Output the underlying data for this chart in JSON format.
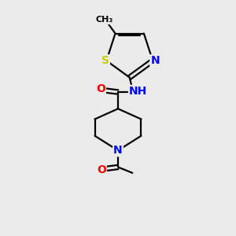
{
  "background_color": "#ebebeb",
  "bond_color": "#000000",
  "atom_colors": {
    "N": "#0000ff",
    "O": "#ff0000",
    "S": "#cccc00",
    "C": "#000000",
    "H": "#008080"
  },
  "figure_size": [
    3.0,
    3.0
  ],
  "dpi": 100
}
